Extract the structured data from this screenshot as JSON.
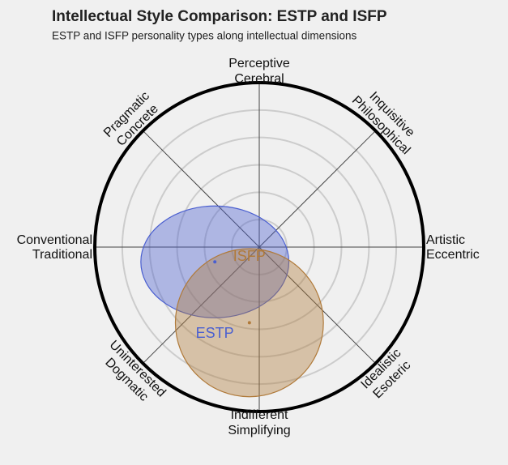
{
  "chart_data": {
    "type": "ellipse-map",
    "title": "Intellectual Style Comparison: ESTP and ISFP",
    "subtitle": "ESTP and ISFP personality types along intellectual dimensions",
    "xlim": [
      -1,
      1
    ],
    "ylim": [
      -1,
      1
    ],
    "rings": [
      0.167,
      0.333,
      0.5,
      0.667,
      0.833
    ],
    "axis_labels": [
      [
        "Perceptive",
        "Cerebral"
      ],
      [
        "Inquisitive",
        "Philosophical"
      ],
      [
        "Artistic",
        "Eccentric"
      ],
      [
        "Idealistic",
        "Esoteric"
      ],
      [
        "Indifferent",
        "Simplifying"
      ],
      [
        "Uninterested",
        "Dogmatic"
      ],
      [
        "Conventional",
        "Traditional"
      ],
      [
        "Pragmatic",
        "Concrete"
      ]
    ],
    "series": [
      {
        "name": "ESTP",
        "color": "#4a5fd0",
        "x": -0.27,
        "y": -0.09,
        "rx": 0.45,
        "ry": 0.34
      },
      {
        "name": "ISFP",
        "color": "#b07a3a",
        "x": -0.06,
        "y": -0.46,
        "rx": 0.45,
        "ry": 0.45
      }
    ]
  }
}
